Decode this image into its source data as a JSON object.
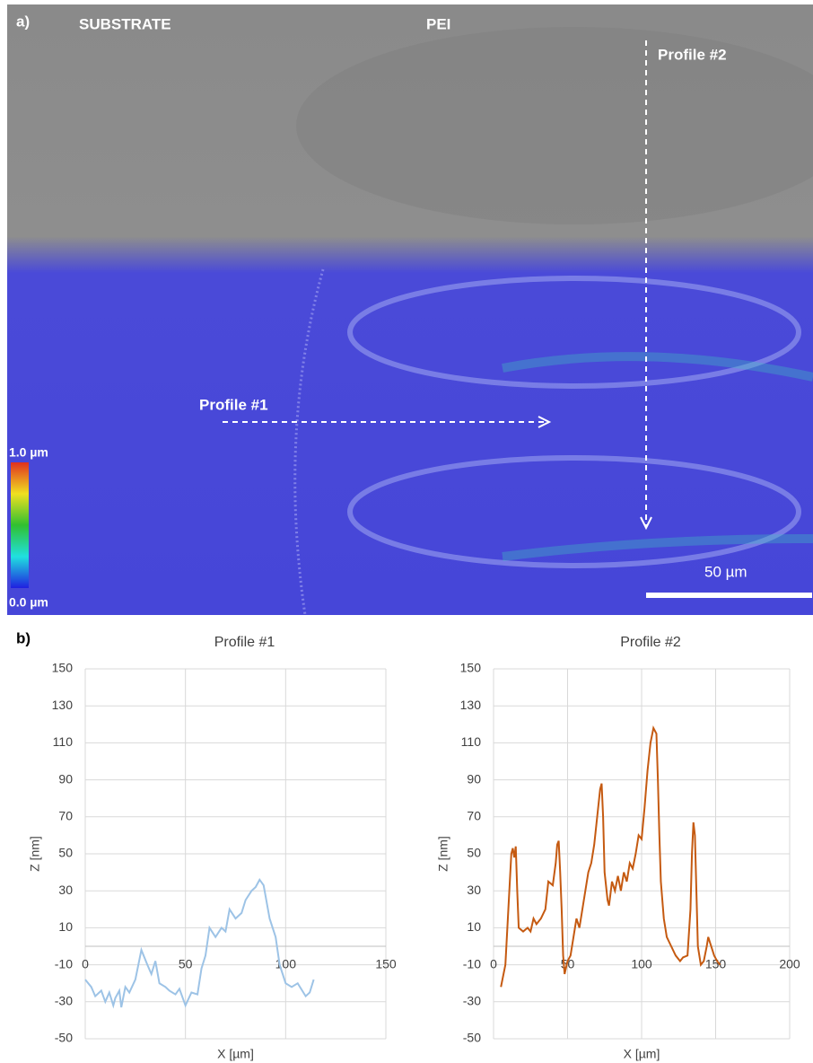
{
  "panel_a": {
    "label": "a)",
    "substrate": "SUBSTRATE",
    "pei": "PEI",
    "profile1": "Profile #1",
    "profile2": "Profile #2",
    "colorbar_max": "1.0 µm",
    "colorbar_min": "0.0 µm",
    "scale_bar": "50 µm"
  },
  "panel_b_label": "b)",
  "chart_data": [
    {
      "type": "line",
      "title": "Profile #1",
      "x_label": "X [µm]",
      "y_label": "Z [nm]",
      "color": "#9dc3e6",
      "grid": true,
      "x": [
        0,
        3,
        5,
        8,
        10,
        12,
        14,
        15,
        17,
        18,
        20,
        22,
        25,
        28,
        31,
        33,
        35,
        37,
        40,
        42,
        45,
        47,
        50,
        53,
        56,
        58,
        60,
        62,
        65,
        68,
        70,
        72,
        75,
        78,
        80,
        83,
        85,
        87,
        89,
        92,
        95,
        97,
        100,
        103,
        106,
        110,
        112,
        114
      ],
      "values": [
        -18,
        -22,
        -27,
        -24,
        -30,
        -25,
        -32,
        -28,
        -24,
        -33,
        -22,
        -25,
        -18,
        -2,
        -10,
        -15,
        -8,
        -20,
        -22,
        -24,
        -26,
        -23,
        -32,
        -25,
        -26,
        -12,
        -5,
        10,
        5,
        10,
        8,
        20,
        15,
        18,
        25,
        30,
        32,
        36,
        33,
        15,
        5,
        -10,
        -20,
        -22,
        -20,
        -27,
        -25,
        -18
      ],
      "xlim": [
        0,
        150
      ],
      "ylim": [
        -50,
        150
      ],
      "xticks": [
        0,
        50,
        100,
        150
      ],
      "yticks": [
        150,
        130,
        110,
        90,
        70,
        50,
        30,
        10,
        -10,
        -30,
        -50
      ]
    },
    {
      "type": "line",
      "title": "Profile #2",
      "x_label": "X [µm]",
      "y_label": "Z [nm]",
      "color": "#c55a11",
      "grid": true,
      "x": [
        5,
        8,
        10,
        12,
        13,
        14,
        15,
        16,
        17,
        20,
        23,
        25,
        27,
        29,
        32,
        35,
        37,
        40,
        42,
        43,
        44,
        45,
        46,
        47,
        48,
        50,
        52,
        54,
        56,
        58,
        60,
        62,
        64,
        66,
        68,
        70,
        72,
        73,
        74,
        75,
        77,
        78,
        80,
        82,
        84,
        86,
        88,
        90,
        92,
        94,
        96,
        98,
        100,
        102,
        104,
        106,
        108,
        110,
        111,
        112,
        113,
        115,
        117,
        120,
        123,
        126,
        128,
        131,
        133,
        134,
        135,
        136,
        137,
        138,
        140,
        142,
        144,
        145,
        147,
        149,
        151,
        153
      ],
      "values": [
        -22,
        -10,
        20,
        50,
        53,
        48,
        54,
        30,
        10,
        8,
        10,
        8,
        15,
        12,
        15,
        20,
        35,
        33,
        45,
        55,
        57,
        40,
        20,
        -5,
        -15,
        -8,
        -5,
        5,
        15,
        10,
        20,
        30,
        40,
        45,
        55,
        70,
        85,
        88,
        70,
        40,
        25,
        22,
        35,
        30,
        38,
        30,
        40,
        35,
        45,
        42,
        50,
        60,
        58,
        75,
        95,
        110,
        118,
        115,
        90,
        60,
        35,
        15,
        5,
        0,
        -5,
        -8,
        -6,
        -5,
        20,
        50,
        67,
        60,
        30,
        0,
        -10,
        -8,
        0,
        5,
        0,
        -5,
        -8,
        -10
      ],
      "xlim": [
        0,
        200
      ],
      "ylim": [
        -50,
        150
      ],
      "xticks": [
        0,
        50,
        100,
        150,
        200
      ],
      "yticks": [
        150,
        130,
        110,
        90,
        70,
        50,
        30,
        10,
        -10,
        -30,
        -50
      ]
    }
  ]
}
